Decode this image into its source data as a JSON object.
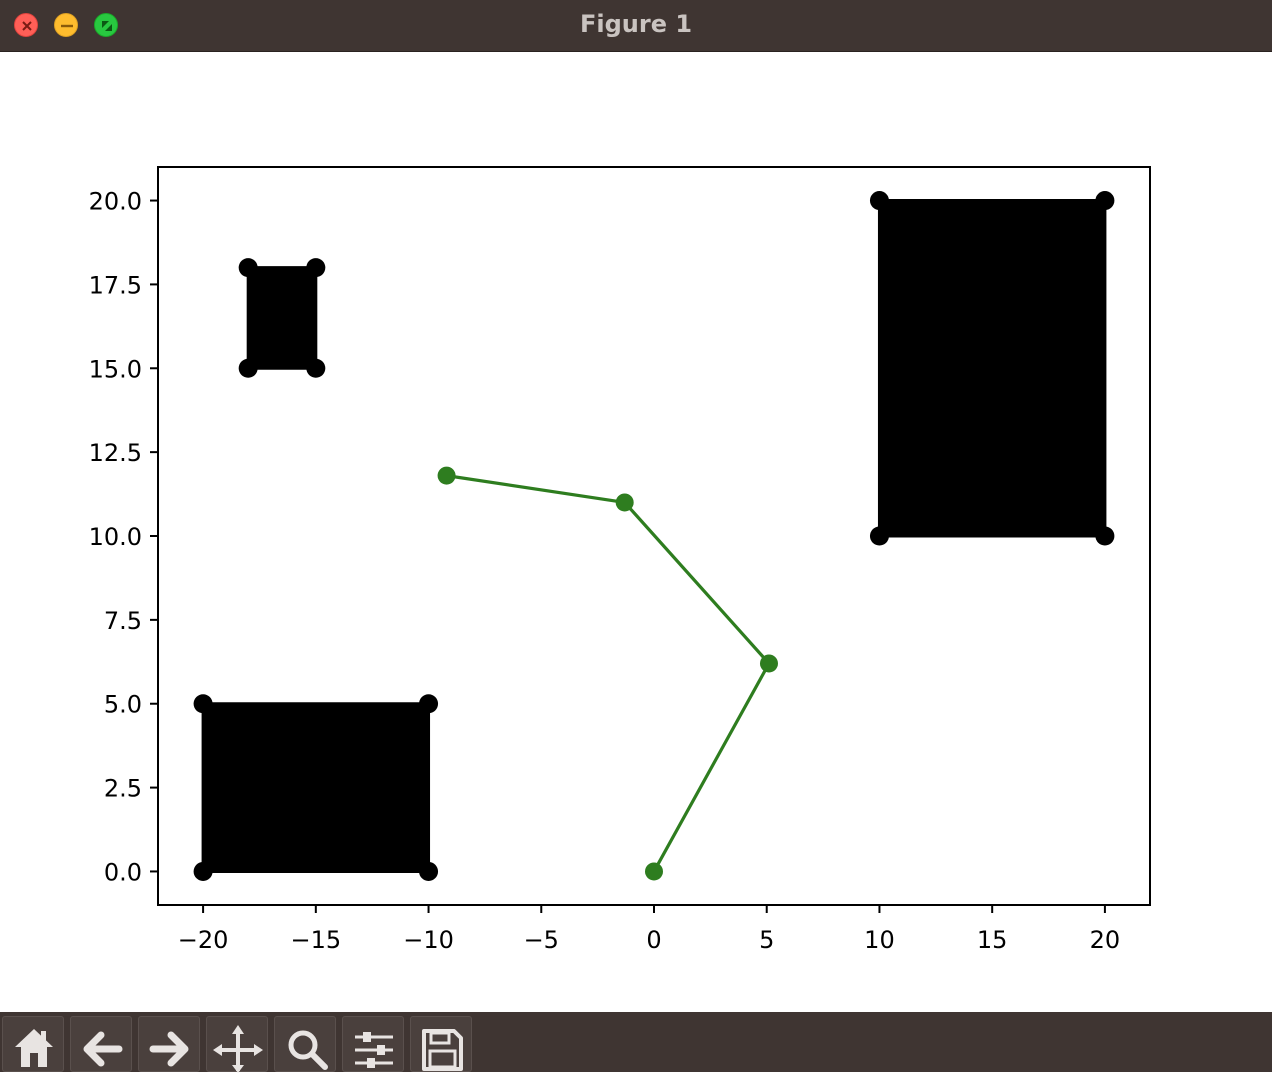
{
  "window": {
    "title": "Figure 1"
  },
  "toolbar": {
    "buttons": [
      {
        "name": "home",
        "icon": "home-icon"
      },
      {
        "name": "back",
        "icon": "arrow-left-icon"
      },
      {
        "name": "forward",
        "icon": "arrow-right-icon"
      },
      {
        "name": "pan",
        "icon": "move-icon"
      },
      {
        "name": "zoom",
        "icon": "magnifier-icon"
      },
      {
        "name": "configure-subplots",
        "icon": "sliders-icon"
      },
      {
        "name": "save",
        "icon": "floppy-disk-icon"
      }
    ]
  },
  "chart_data": {
    "type": "line",
    "xlim": [
      -22,
      22
    ],
    "ylim": [
      -1,
      21
    ],
    "x_ticks": [
      -20,
      -15,
      -10,
      -5,
      0,
      5,
      10,
      15,
      20
    ],
    "x_tick_labels": [
      "−20",
      "−15",
      "−10",
      "−5",
      "0",
      "5",
      "10",
      "15",
      "20"
    ],
    "y_ticks": [
      0.0,
      2.5,
      5.0,
      7.5,
      10.0,
      12.5,
      15.0,
      17.5,
      20.0
    ],
    "y_tick_labels": [
      "0.0",
      "2.5",
      "5.0",
      "7.5",
      "10.0",
      "12.5",
      "15.0",
      "17.5",
      "20.0"
    ],
    "grid": false,
    "obstacles": [
      {
        "corners": [
          [
            -20,
            0
          ],
          [
            -10,
            0
          ],
          [
            -10,
            5
          ],
          [
            -20,
            5
          ]
        ],
        "color": "#000000"
      },
      {
        "corners": [
          [
            -18,
            15
          ],
          [
            -15,
            15
          ],
          [
            -15,
            18
          ],
          [
            -18,
            18
          ]
        ],
        "color": "#000000"
      },
      {
        "corners": [
          [
            10,
            10
          ],
          [
            20,
            10
          ],
          [
            20,
            20
          ],
          [
            10,
            20
          ]
        ],
        "color": "#000000"
      }
    ],
    "series": [
      {
        "x": [
          0,
          5.1,
          -1.3,
          -9.2
        ],
        "y": [
          0,
          6.2,
          11.0,
          11.8
        ],
        "color": "#2e7d1f",
        "marker": "o"
      }
    ]
  }
}
